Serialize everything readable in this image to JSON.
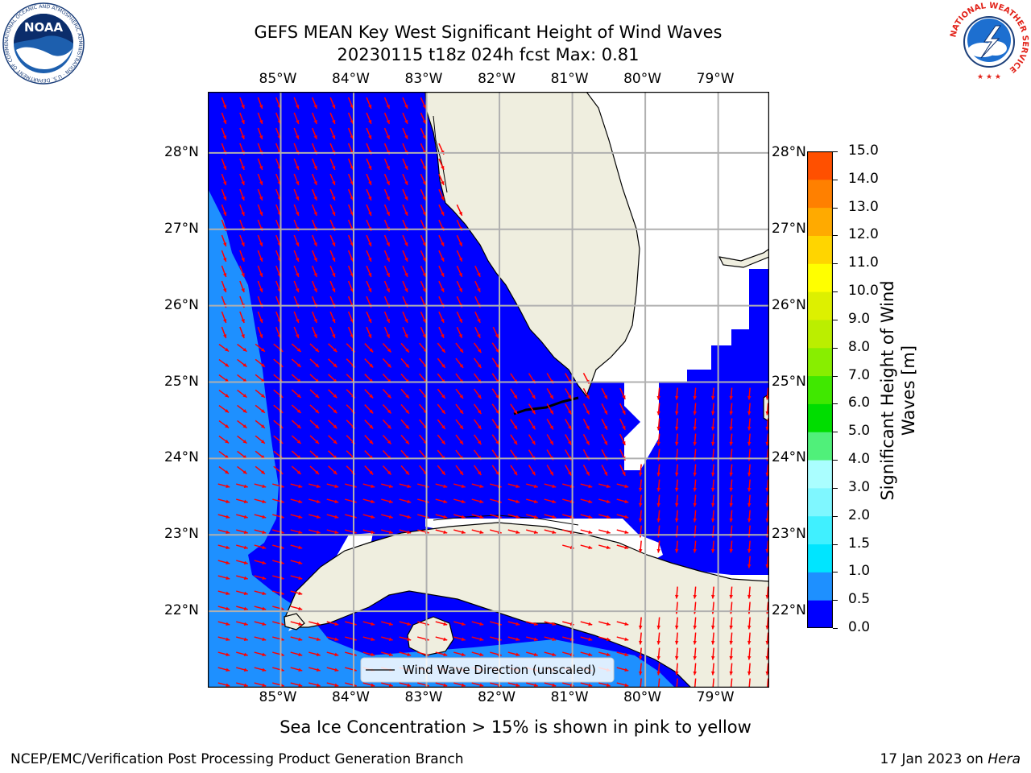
{
  "header": {
    "title_line1": "GEFS MEAN Key West Significant Height of Wind Waves",
    "title_line2": "20230115 t18z 024h fcst   Max: 0.81"
  },
  "axes": {
    "lon_labels": [
      "85°W",
      "84°W",
      "83°W",
      "82°W",
      "81°W",
      "80°W",
      "79°W"
    ],
    "lat_labels": [
      "28°N",
      "27°N",
      "26°N",
      "25°N",
      "24°N",
      "23°N",
      "22°N"
    ],
    "lon_values": [
      -85,
      -84,
      -83,
      -82,
      -81,
      -80,
      -79
    ],
    "lat_values": [
      28,
      27,
      26,
      25,
      24,
      23,
      22
    ],
    "lon_range": [
      -86,
      -78.3
    ],
    "lat_range": [
      21,
      28.8
    ]
  },
  "legend": {
    "label": "Wind Wave Direction (unscaled)"
  },
  "colorbar": {
    "label": "Significant Height of Wind Waves [m]",
    "ticks": [
      "0.0",
      "0.5",
      "1.0",
      "1.5",
      "2.0",
      "3.0",
      "4.0",
      "5.0",
      "6.0",
      "7.0",
      "8.0",
      "9.0",
      "10.0",
      "11.0",
      "12.0",
      "13.0",
      "14.0",
      "15.0"
    ],
    "colors": [
      "#0000ff",
      "#1e90ff",
      "#00e5ff",
      "#40f0ff",
      "#7ff7ff",
      "#aafeff",
      "#50f07a",
      "#00dd00",
      "#40e800",
      "#88ee00",
      "#bbee00",
      "#ddf000",
      "#ffff00",
      "#ffd500",
      "#ffaa00",
      "#ff8000",
      "#ff5000",
      "#ff2000",
      "#ff0000"
    ]
  },
  "logos": {
    "noaa_text": "NOAA",
    "noaa_ring": "NATIONAL OCEANIC AND ATMOSPHERIC ADMINISTRATION · U.S. DEPARTMENT OF COMMERCE",
    "nws_ring": "NATIONAL WEATHER SERVICE"
  },
  "colors": {
    "deep_water": "#0000ff",
    "shallow_water": "#1e90ff",
    "land": "#efeedf",
    "arrow": "#ff0000",
    "grid": "#b0b0b0"
  },
  "footer": {
    "note": "Sea Ice Concentration > 15% is shown in pink to yellow",
    "left": "NCEP/EMC/Verification Post Processing Product Generation Branch",
    "date": "17 Jan 2023 on ",
    "machine": "Hera"
  }
}
